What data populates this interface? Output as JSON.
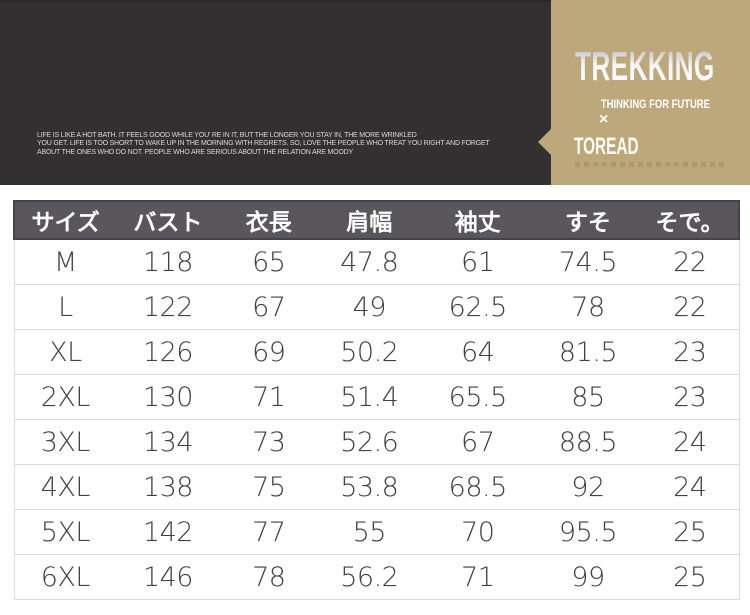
{
  "banner": {
    "quote_lines": [
      "LIFE IS LIKE A HOT BATH. IT FEELS GOOD WHILE YOU' RE IN IT, BUT THE LONGER YOU STAY IN, THE MORE WRINKLED",
      "YOU GET. LIFE IS TOO SHORT TO WAKE UP IN THE MORNING WITH REGRETS. SO, LOVE THE PEOPLE WHO TREAT YOU RIGHT AND FORGET",
      "ABOUT THE ONES WHO DO NOT. PEOPLE WHO ARE SERIOUS ABOUT THE RELATION ARE MOODY"
    ],
    "brand": {
      "title": "TREKKING",
      "tagline": "THINKING FOR FUTURE",
      "separator": "×",
      "subbrand": "TOREAD"
    }
  },
  "colors": {
    "dark_panel": "#333031",
    "tan_panel": "#bda87b",
    "header_bg": "#59575b",
    "header_text": "#ffffff",
    "cell_text": "#414141",
    "row_border": "#d9d9d9"
  },
  "chart_data": {
    "type": "table",
    "title": "",
    "columns": [
      "サイズ",
      "バスト",
      "衣長",
      "肩幅",
      "袖丈",
      "すそ",
      "そで。"
    ],
    "rows": [
      [
        "M",
        "118",
        "65",
        "47.8",
        "61",
        "74.5",
        "22"
      ],
      [
        "L",
        "122",
        "67",
        "49",
        "62.5",
        "78",
        "22"
      ],
      [
        "XL",
        "126",
        "69",
        "50.2",
        "64",
        "81.5",
        "23"
      ],
      [
        "2XL",
        "130",
        "71",
        "51.4",
        "65.5",
        "85",
        "23"
      ],
      [
        "3XL",
        "134",
        "73",
        "52.6",
        "67",
        "88.5",
        "24"
      ],
      [
        "4XL",
        "138",
        "75",
        "53.8",
        "68.5",
        "92",
        "24"
      ],
      [
        "5XL",
        "142",
        "77",
        "55",
        "70",
        "95.5",
        "25"
      ],
      [
        "6XL",
        "146",
        "78",
        "56.2",
        "71",
        "99",
        "25"
      ]
    ]
  }
}
